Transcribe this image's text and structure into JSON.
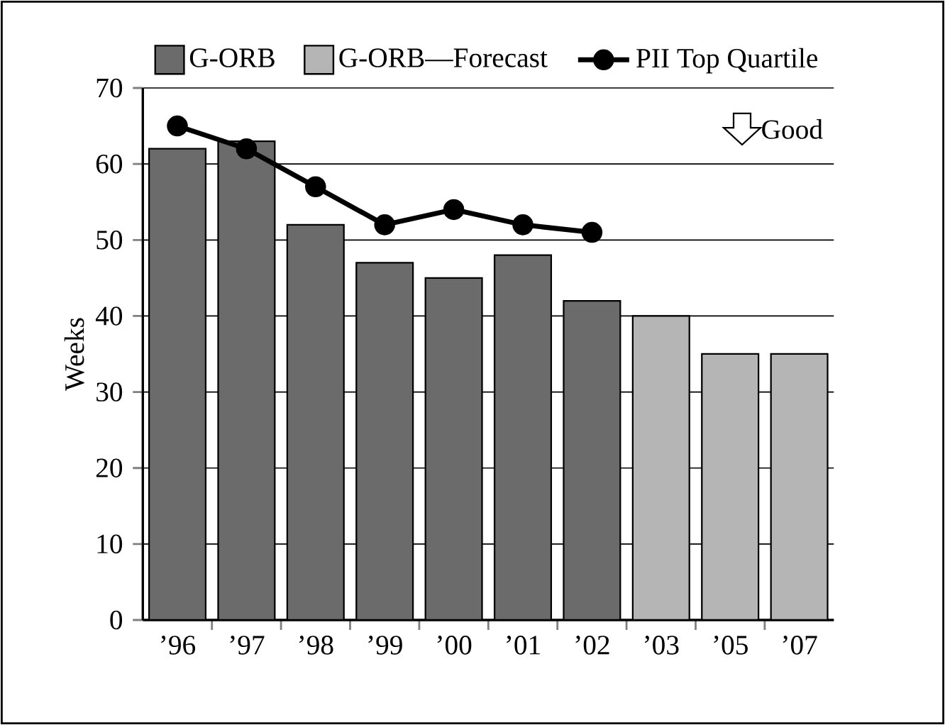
{
  "chart_data": {
    "type": "bar",
    "categories": [
      "’96",
      "’97",
      "’98",
      "’99",
      "’00",
      "’01",
      "’02",
      "’03",
      "’05",
      "’07"
    ],
    "ylabel": "Weeks",
    "series": [
      {
        "name": "G-ORB",
        "color": "#6b6b6b",
        "values": [
          62,
          63,
          52,
          47,
          45,
          48,
          42,
          null,
          null,
          null
        ]
      },
      {
        "name": "G-ORB—Forecast",
        "color": "#b5b5b5",
        "values": [
          null,
          null,
          null,
          null,
          null,
          null,
          null,
          40,
          35,
          35
        ]
      },
      {
        "name": "PII Top Quartile",
        "type": "line",
        "color": "#000000",
        "values": [
          65,
          62,
          57,
          52,
          54,
          52,
          51,
          null,
          null,
          null
        ]
      }
    ],
    "ylim": [
      0,
      70
    ],
    "yticks": [
      0,
      10,
      20,
      30,
      40,
      50,
      60,
      70
    ],
    "grid": "y",
    "legend": "top",
    "marker": "circle",
    "annotations": [
      "Good"
    ]
  }
}
